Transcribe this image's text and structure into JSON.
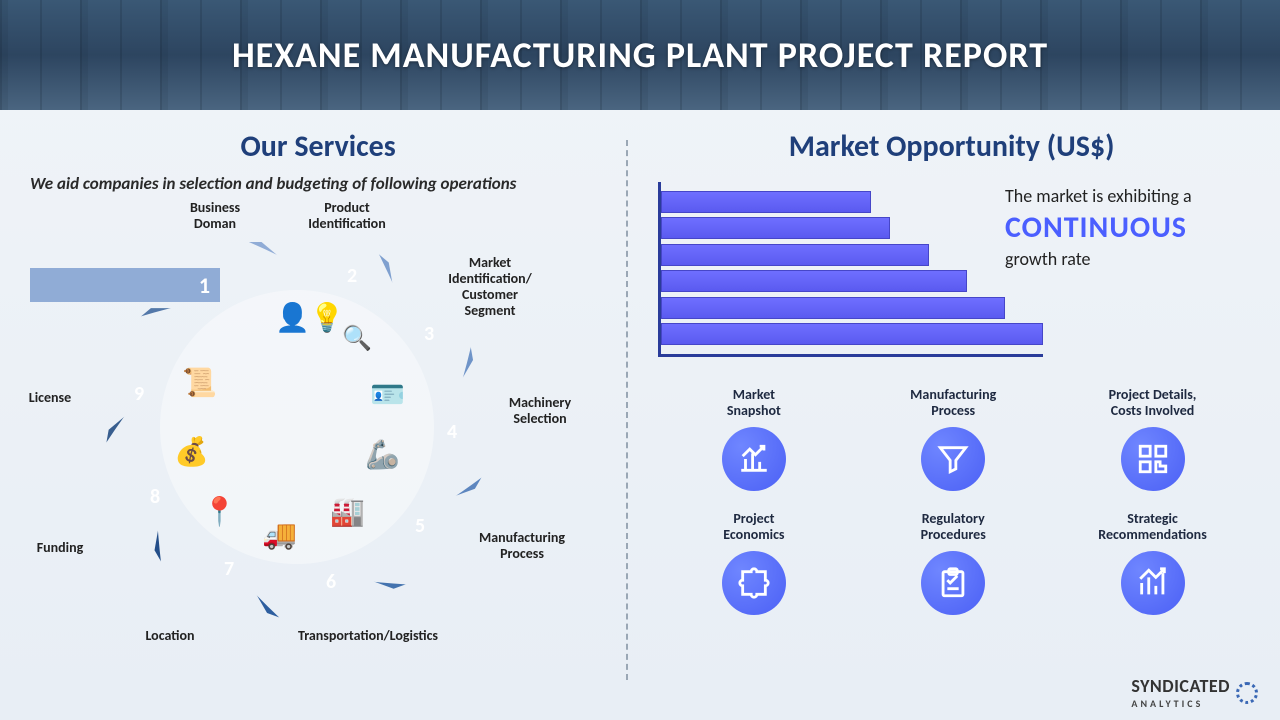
{
  "header": {
    "title": "HEXANE MANUFACTURING PLANT PROJECT REPORT"
  },
  "services": {
    "title": "Our Services",
    "subtitle": "We aid companies in selection and budgeting of following operations",
    "segments": [
      {
        "num": "1",
        "label": "Business\nDoman",
        "color": "#90acd6"
      },
      {
        "num": "2",
        "label": "Product\nIdentification",
        "color": "#7fa0cf"
      },
      {
        "num": "3",
        "label": "Market\nIdentification/\nCustomer\nSegment",
        "color": "#6f94c8"
      },
      {
        "num": "4",
        "label": "Machinery\nSelection",
        "color": "#5d86bf"
      },
      {
        "num": "5",
        "label": "Manufacturing\nProcess",
        "color": "#4473af"
      },
      {
        "num": "6",
        "label": "Transportation/Logistics",
        "color": "#2d5e9f"
      },
      {
        "num": "7",
        "label": "Location",
        "color": "#234e89"
      },
      {
        "num": "8",
        "label": "Funding",
        "color": "#385e8f"
      },
      {
        "num": "9",
        "label": "License",
        "color": "#5378a9"
      }
    ],
    "inner_icons": [
      "lightbulb-head",
      "barcode-search",
      "id-card",
      "robot-arm",
      "worker-belt",
      "truck",
      "map-pin",
      "money-bag",
      "certificate"
    ]
  },
  "market": {
    "title": "Market Opportunity (US$)",
    "bars": {
      "values": [
        55,
        60,
        70,
        80,
        90,
        100
      ],
      "color": "#5a5af0",
      "axis_color": "#2a3c9a"
    },
    "growth": {
      "line1": "The market is exhibiting a",
      "highlight": "CONTINUOUS",
      "line2": "growth rate",
      "highlight_color": "#4b5fff"
    },
    "features": [
      {
        "label": "Market\nSnapshot",
        "icon": "chart-up"
      },
      {
        "label": "Manufacturing\nProcess",
        "icon": "funnel"
      },
      {
        "label": "Project Details,\nCosts Involved",
        "icon": "qr-maze"
      },
      {
        "label": "Project\nEconomics",
        "icon": "puzzle"
      },
      {
        "label": "Regulatory\nProcedures",
        "icon": "clipboard"
      },
      {
        "label": "Strategic\nRecommendations",
        "icon": "bars-arrow"
      }
    ],
    "feature_icon_bg": "#4b60f5"
  },
  "brand": {
    "name": "SYNDICATED",
    "sub": "ANALYTICS"
  },
  "colors": {
    "title": "#1f3f7a",
    "background": "#f0f4f8"
  }
}
